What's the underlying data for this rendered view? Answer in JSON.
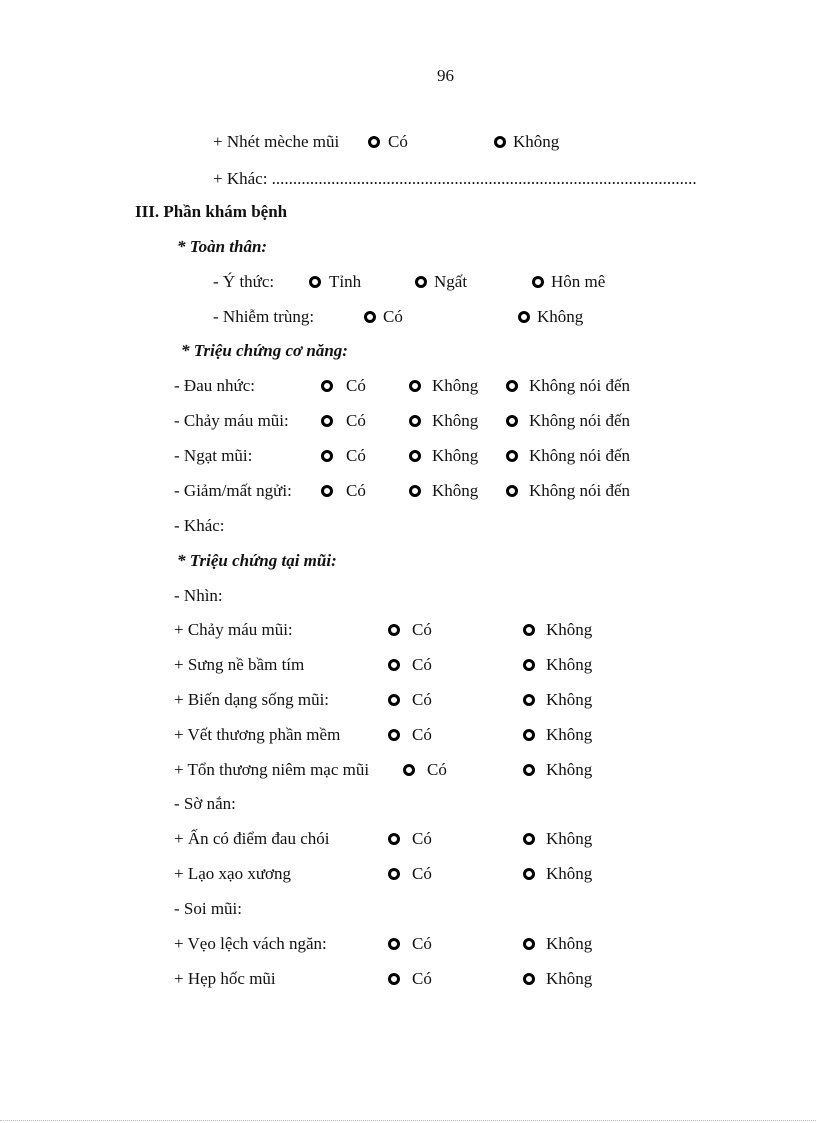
{
  "page_number": "96",
  "rows": {
    "nhet_meche": {
      "label": "+ Nhét mèche mũi",
      "opt1": "Có",
      "opt2": "Không"
    },
    "khac_top": {
      "label": "+ Khác: ...................................................................................................."
    },
    "section_iii": "III. Phần khám bệnh",
    "toan_than": "* Toàn thân:",
    "y_thuc": {
      "label": "- Ý thức:",
      "opt1": "Tỉnh",
      "opt2": "Ngất",
      "opt3": "Hôn mê"
    },
    "nhiem_trung": {
      "label": "- Nhiễm trùng:",
      "opt1": "Có",
      "opt2": "Không"
    },
    "co_nang": "* Triệu chứng cơ năng:",
    "co_nang_items": [
      {
        "label": "- Đau nhức:",
        "opt1": "Có",
        "opt2": "Không",
        "opt3": "Không nói đến"
      },
      {
        "label": "- Chảy máu mũi:",
        "opt1": "Có",
        "opt2": "Không",
        "opt3": "Không nói đến"
      },
      {
        "label": "- Ngạt mũi:",
        "opt1": "Có",
        "opt2": "Không",
        "opt3": "Không nói đến"
      },
      {
        "label": "- Giảm/mất ngửi:",
        "opt1": "Có",
        "opt2": "Không",
        "opt3": "Không nói đến"
      }
    ],
    "khac_co_nang": "- Khác:",
    "tai_mui": "* Triệu chứng tại mũi:",
    "nhin": "- Nhìn:",
    "nhin_items": [
      {
        "label": "+ Chảy máu mũi:",
        "opt1": "Có",
        "opt2": "Không"
      },
      {
        "label": "+ Sưng nề bầm tím",
        "opt1": "Có",
        "opt2": "Không"
      },
      {
        "label": "+ Biến  dạng sống mũi:",
        "opt1": "Có",
        "opt2": "Không"
      },
      {
        "label": "+ Vết thương phần mềm",
        "opt1": "Có",
        "opt2": "Không"
      },
      {
        "label": "+ Tổn thương niêm mạc mũi",
        "opt1": "Có",
        "opt2": "Không"
      }
    ],
    "so_nan": "- Sờ nắn:",
    "so_nan_items": [
      {
        "label": "+ Ấn có điểm đau chói",
        "opt1": "Có",
        "opt2": "Không"
      },
      {
        "label": "+ Lạo xạo xương",
        "opt1": "Có",
        "opt2": "Không"
      }
    ],
    "soi_mui": "- Soi mũi:",
    "soi_mui_items": [
      {
        "label": "+ Vẹo lệch vách ngăn:",
        "opt1": "Có",
        "opt2": "Không"
      },
      {
        "label": "+ Hẹp hốc mũi",
        "opt1": "Có",
        "opt2": "Không"
      }
    ]
  }
}
